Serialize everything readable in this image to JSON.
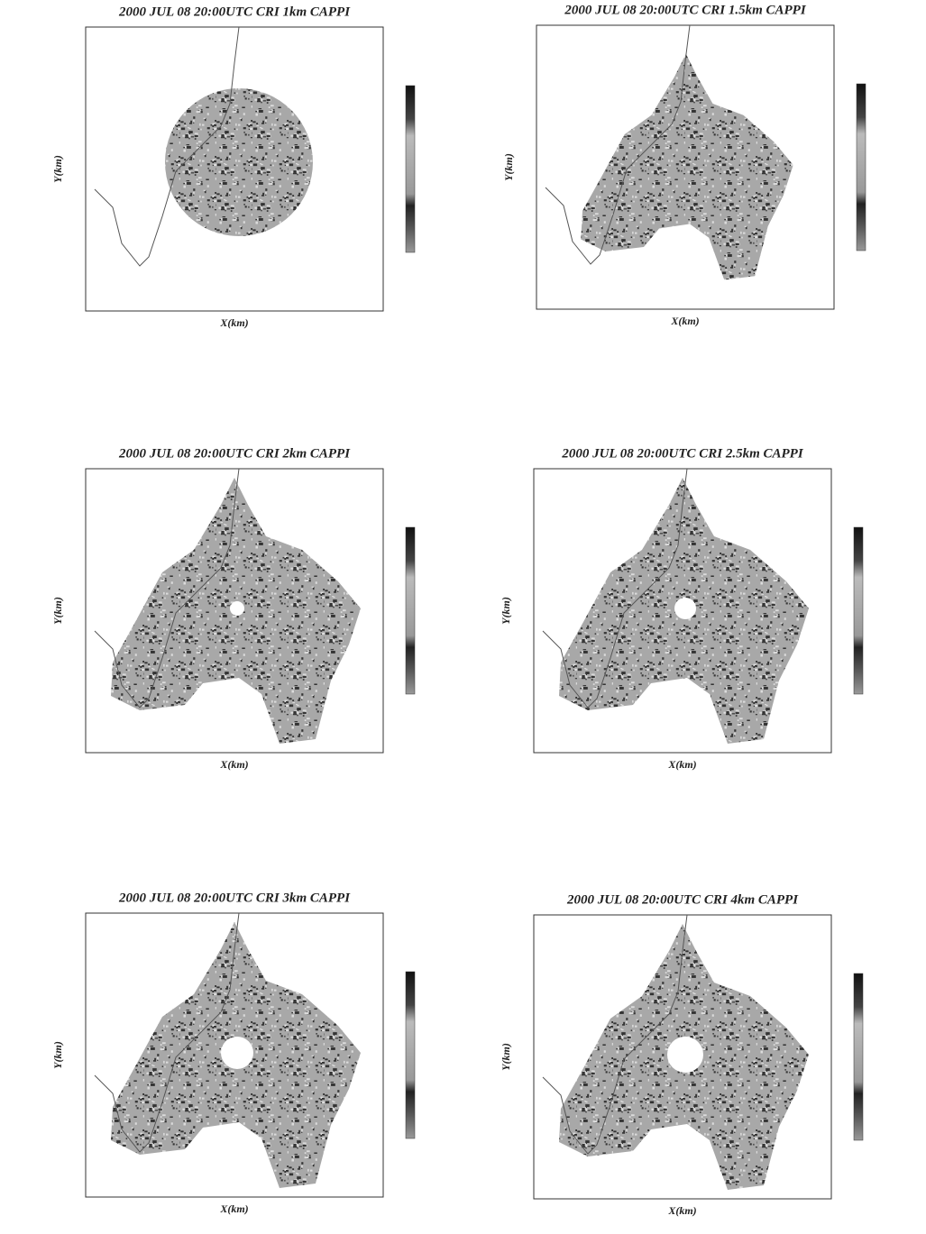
{
  "panels": [
    {
      "title": "2000 JUL 08 20:00UTC CRI 1km CAPPI",
      "x_label": "X(km)",
      "y_label": "Y(km)"
    },
    {
      "title": "2000 JUL 08 20:00UTC CRI 1.5km CAPPI",
      "x_label": "X(km)",
      "y_label": "Y(km)"
    },
    {
      "title": "2000 JUL 08 20:00UTC CRI 2km CAPPI",
      "x_label": "X(km)",
      "y_label": "Y(km)"
    },
    {
      "title": "2000 JUL 08 20:00UTC CRI 2.5km CAPPI",
      "x_label": "X(km)",
      "y_label": "Y(km)"
    },
    {
      "title": "2000 JUL 08 20:00UTC CRI 3km CAPPI",
      "x_label": "X(km)",
      "y_label": "Y(km)"
    },
    {
      "title": "2000 JUL 08 20:00UTC CRI 4km CAPPI",
      "x_label": "X(km)",
      "y_label": "Y(km)"
    }
  ]
}
